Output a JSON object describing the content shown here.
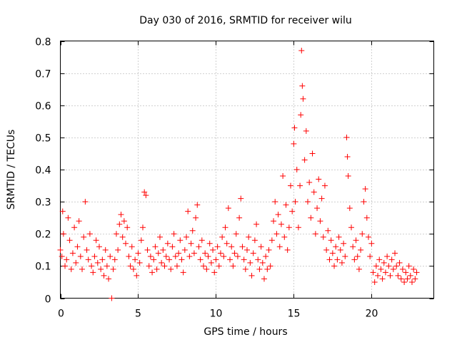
{
  "chart_data": {
    "type": "scatter",
    "title": "Day 030 of 2016, SRMTID for receiver wilu",
    "xlabel": "GPS time / hours",
    "ylabel": "SRMTID / TECUs",
    "xlim": [
      0,
      24
    ],
    "ylim": [
      0,
      0.8
    ],
    "xticks": [
      0,
      5,
      10,
      15,
      20
    ],
    "yticks": [
      0,
      0.1,
      0.2,
      0.3,
      0.4,
      0.5,
      0.6,
      0.7,
      0.8
    ],
    "x_tick_labels": [
      "0",
      "5",
      "10",
      "15",
      "20"
    ],
    "y_tick_labels": [
      "0",
      "0.1",
      "0.2",
      "0.3",
      "0.4",
      "0.5",
      "0.6",
      "0.7",
      "0.8"
    ],
    "grid": true,
    "marker": "+",
    "color": "#ff0000",
    "series": [
      {
        "name": "SRMTID",
        "points": [
          [
            0.0,
            0.15
          ],
          [
            0.1,
            0.13
          ],
          [
            0.15,
            0.27
          ],
          [
            0.2,
            0.2
          ],
          [
            0.3,
            0.1
          ],
          [
            0.4,
            0.12
          ],
          [
            0.5,
            0.25
          ],
          [
            0.6,
            0.18
          ],
          [
            0.7,
            0.09
          ],
          [
            0.8,
            0.14
          ],
          [
            0.9,
            0.22
          ],
          [
            1.0,
            0.11
          ],
          [
            1.1,
            0.16
          ],
          [
            1.2,
            0.24
          ],
          [
            1.3,
            0.13
          ],
          [
            1.4,
            0.09
          ],
          [
            1.5,
            0.19
          ],
          [
            1.6,
            0.3
          ],
          [
            1.7,
            0.15
          ],
          [
            1.8,
            0.12
          ],
          [
            1.9,
            0.2
          ],
          [
            2.0,
            0.1
          ],
          [
            2.1,
            0.08
          ],
          [
            2.2,
            0.13
          ],
          [
            2.3,
            0.18
          ],
          [
            2.4,
            0.11
          ],
          [
            2.5,
            0.16
          ],
          [
            2.6,
            0.09
          ],
          [
            2.7,
            0.12
          ],
          [
            2.8,
            0.07
          ],
          [
            2.9,
            0.15
          ],
          [
            3.0,
            0.1
          ],
          [
            3.1,
            0.06
          ],
          [
            3.2,
            0.13
          ],
          [
            3.3,
            0.0
          ],
          [
            3.4,
            0.09
          ],
          [
            3.5,
            0.12
          ],
          [
            3.6,
            0.2
          ],
          [
            3.7,
            0.15
          ],
          [
            3.8,
            0.23
          ],
          [
            3.9,
            0.26
          ],
          [
            4.0,
            0.19
          ],
          [
            4.1,
            0.24
          ],
          [
            4.2,
            0.17
          ],
          [
            4.3,
            0.22
          ],
          [
            4.4,
            0.13
          ],
          [
            4.5,
            0.1
          ],
          [
            4.6,
            0.16
          ],
          [
            4.7,
            0.09
          ],
          [
            4.8,
            0.12
          ],
          [
            4.9,
            0.07
          ],
          [
            5.0,
            0.14
          ],
          [
            5.1,
            0.11
          ],
          [
            5.2,
            0.18
          ],
          [
            5.3,
            0.22
          ],
          [
            5.4,
            0.33
          ],
          [
            5.5,
            0.32
          ],
          [
            5.6,
            0.15
          ],
          [
            5.7,
            0.1
          ],
          [
            5.8,
            0.13
          ],
          [
            5.9,
            0.08
          ],
          [
            6.0,
            0.12
          ],
          [
            6.1,
            0.16
          ],
          [
            6.2,
            0.09
          ],
          [
            6.3,
            0.14
          ],
          [
            6.4,
            0.19
          ],
          [
            6.5,
            0.11
          ],
          [
            6.6,
            0.15
          ],
          [
            6.7,
            0.1
          ],
          [
            6.8,
            0.13
          ],
          [
            6.9,
            0.17
          ],
          [
            7.0,
            0.12
          ],
          [
            7.1,
            0.09
          ],
          [
            7.2,
            0.16
          ],
          [
            7.3,
            0.2
          ],
          [
            7.4,
            0.13
          ],
          [
            7.5,
            0.1
          ],
          [
            7.6,
            0.14
          ],
          [
            7.7,
            0.18
          ],
          [
            7.8,
            0.12
          ],
          [
            7.9,
            0.08
          ],
          [
            8.0,
            0.15
          ],
          [
            8.1,
            0.19
          ],
          [
            8.2,
            0.27
          ],
          [
            8.3,
            0.13
          ],
          [
            8.4,
            0.17
          ],
          [
            8.5,
            0.21
          ],
          [
            8.6,
            0.14
          ],
          [
            8.7,
            0.25
          ],
          [
            8.8,
            0.29
          ],
          [
            8.9,
            0.16
          ],
          [
            9.0,
            0.12
          ],
          [
            9.1,
            0.18
          ],
          [
            9.2,
            0.1
          ],
          [
            9.3,
            0.14
          ],
          [
            9.4,
            0.09
          ],
          [
            9.5,
            0.13
          ],
          [
            9.6,
            0.17
          ],
          [
            9.7,
            0.11
          ],
          [
            9.8,
            0.15
          ],
          [
            9.9,
            0.08
          ],
          [
            10.0,
            0.12
          ],
          [
            10.1,
            0.16
          ],
          [
            10.2,
            0.1
          ],
          [
            10.3,
            0.14
          ],
          [
            10.4,
            0.19
          ],
          [
            10.5,
            0.13
          ],
          [
            10.6,
            0.22
          ],
          [
            10.7,
            0.17
          ],
          [
            10.8,
            0.28
          ],
          [
            10.9,
            0.12
          ],
          [
            11.0,
            0.16
          ],
          [
            11.1,
            0.1
          ],
          [
            11.2,
            0.14
          ],
          [
            11.3,
            0.2
          ],
          [
            11.4,
            0.13
          ],
          [
            11.5,
            0.25
          ],
          [
            11.6,
            0.31
          ],
          [
            11.7,
            0.16
          ],
          [
            11.8,
            0.12
          ],
          [
            11.9,
            0.09
          ],
          [
            12.0,
            0.15
          ],
          [
            12.1,
            0.19
          ],
          [
            12.2,
            0.11
          ],
          [
            12.3,
            0.07
          ],
          [
            12.4,
            0.14
          ],
          [
            12.5,
            0.18
          ],
          [
            12.6,
            0.23
          ],
          [
            12.7,
            0.12
          ],
          [
            12.8,
            0.09
          ],
          [
            12.9,
            0.16
          ],
          [
            13.0,
            0.11
          ],
          [
            13.1,
            0.06
          ],
          [
            13.2,
            0.13
          ],
          [
            13.3,
            0.09
          ],
          [
            13.4,
            0.15
          ],
          [
            13.5,
            0.1
          ],
          [
            13.6,
            0.18
          ],
          [
            13.7,
            0.24
          ],
          [
            13.8,
            0.3
          ],
          [
            13.9,
            0.2
          ],
          [
            14.0,
            0.26
          ],
          [
            14.1,
            0.16
          ],
          [
            14.2,
            0.23
          ],
          [
            14.3,
            0.38
          ],
          [
            14.4,
            0.19
          ],
          [
            14.5,
            0.29
          ],
          [
            14.6,
            0.15
          ],
          [
            14.7,
            0.22
          ],
          [
            14.8,
            0.35
          ],
          [
            14.9,
            0.27
          ],
          [
            15.0,
            0.48
          ],
          [
            15.05,
            0.53
          ],
          [
            15.1,
            0.3
          ],
          [
            15.2,
            0.4
          ],
          [
            15.3,
            0.22
          ],
          [
            15.4,
            0.35
          ],
          [
            15.45,
            0.57
          ],
          [
            15.5,
            0.77
          ],
          [
            15.55,
            0.66
          ],
          [
            15.6,
            0.62
          ],
          [
            15.7,
            0.43
          ],
          [
            15.8,
            0.52
          ],
          [
            15.9,
            0.3
          ],
          [
            16.0,
            0.36
          ],
          [
            16.1,
            0.25
          ],
          [
            16.2,
            0.45
          ],
          [
            16.3,
            0.33
          ],
          [
            16.4,
            0.2
          ],
          [
            16.5,
            0.28
          ],
          [
            16.6,
            0.37
          ],
          [
            16.7,
            0.24
          ],
          [
            16.8,
            0.31
          ],
          [
            16.9,
            0.19
          ],
          [
            17.0,
            0.35
          ],
          [
            17.1,
            0.15
          ],
          [
            17.2,
            0.21
          ],
          [
            17.3,
            0.12
          ],
          [
            17.4,
            0.18
          ],
          [
            17.5,
            0.14
          ],
          [
            17.6,
            0.1
          ],
          [
            17.7,
            0.16
          ],
          [
            17.8,
            0.12
          ],
          [
            17.9,
            0.19
          ],
          [
            18.0,
            0.15
          ],
          [
            18.1,
            0.11
          ],
          [
            18.2,
            0.17
          ],
          [
            18.3,
            0.13
          ],
          [
            18.4,
            0.5
          ],
          [
            18.45,
            0.44
          ],
          [
            18.5,
            0.38
          ],
          [
            18.6,
            0.28
          ],
          [
            18.7,
            0.22
          ],
          [
            18.8,
            0.16
          ],
          [
            18.9,
            0.12
          ],
          [
            19.0,
            0.18
          ],
          [
            19.1,
            0.13
          ],
          [
            19.2,
            0.09
          ],
          [
            19.3,
            0.15
          ],
          [
            19.4,
            0.2
          ],
          [
            19.5,
            0.3
          ],
          [
            19.6,
            0.34
          ],
          [
            19.7,
            0.25
          ],
          [
            19.8,
            0.19
          ],
          [
            19.9,
            0.13
          ],
          [
            20.0,
            0.17
          ],
          [
            20.1,
            0.08
          ],
          [
            20.2,
            0.05
          ],
          [
            20.3,
            0.1
          ],
          [
            20.4,
            0.07
          ],
          [
            20.5,
            0.12
          ],
          [
            20.6,
            0.09
          ],
          [
            20.7,
            0.06
          ],
          [
            20.8,
            0.11
          ],
          [
            20.9,
            0.08
          ],
          [
            21.0,
            0.13
          ],
          [
            21.1,
            0.1
          ],
          [
            21.2,
            0.07
          ],
          [
            21.3,
            0.12
          ],
          [
            21.4,
            0.09
          ],
          [
            21.5,
            0.14
          ],
          [
            21.6,
            0.1
          ],
          [
            21.7,
            0.07
          ],
          [
            21.8,
            0.11
          ],
          [
            21.9,
            0.06
          ],
          [
            22.0,
            0.09
          ],
          [
            22.1,
            0.05
          ],
          [
            22.2,
            0.08
          ],
          [
            22.3,
            0.06
          ],
          [
            22.4,
            0.1
          ],
          [
            22.5,
            0.07
          ],
          [
            22.6,
            0.05
          ],
          [
            22.7,
            0.09
          ],
          [
            22.8,
            0.06
          ],
          [
            22.9,
            0.08
          ]
        ]
      }
    ]
  }
}
